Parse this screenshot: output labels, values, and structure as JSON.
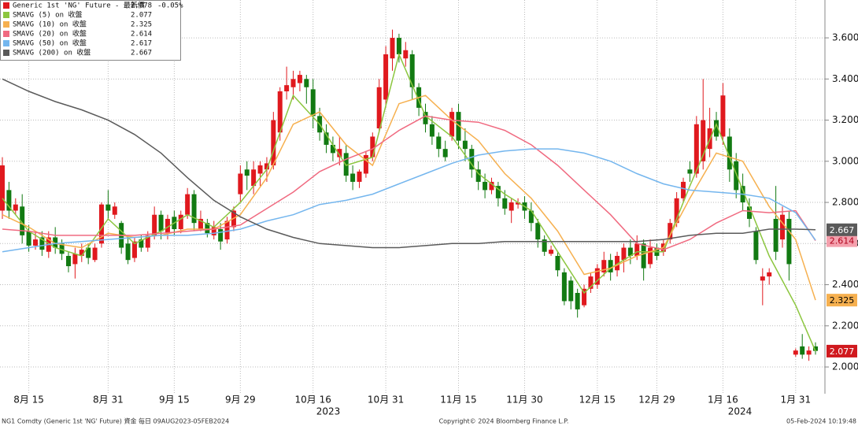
{
  "chart_data": {
    "type": "candlestick",
    "categories": [
      "2023-08-09",
      "2023-08-10",
      "2023-08-11",
      "2023-08-14",
      "2023-08-15",
      "2023-08-16",
      "2023-08-17",
      "2023-08-18",
      "2023-08-21",
      "2023-08-22",
      "2023-08-23",
      "2023-08-24",
      "2023-08-25",
      "2023-08-28",
      "2023-08-29",
      "2023-08-30",
      "2023-08-31",
      "2023-09-01",
      "2023-09-05",
      "2023-09-06",
      "2023-09-07",
      "2023-09-08",
      "2023-09-11",
      "2023-09-12",
      "2023-09-13",
      "2023-09-14",
      "2023-09-15",
      "2023-09-18",
      "2023-09-19",
      "2023-09-20",
      "2023-09-21",
      "2023-09-22",
      "2023-09-25",
      "2023-09-26",
      "2023-09-27",
      "2023-09-28",
      "2023-09-29",
      "2023-10-02",
      "2023-10-03",
      "2023-10-04",
      "2023-10-05",
      "2023-10-06",
      "2023-10-09",
      "2023-10-10",
      "2023-10-11",
      "2023-10-12",
      "2023-10-13",
      "2023-10-16",
      "2023-10-17",
      "2023-10-18",
      "2023-10-19",
      "2023-10-20",
      "2023-10-23",
      "2023-10-24",
      "2023-10-25",
      "2023-10-26",
      "2023-10-27",
      "2023-10-30",
      "2023-10-31",
      "2023-11-01",
      "2023-11-02",
      "2023-11-03",
      "2023-11-06",
      "2023-11-07",
      "2023-11-08",
      "2023-11-09",
      "2023-11-10",
      "2023-11-13",
      "2023-11-14",
      "2023-11-15",
      "2023-11-16",
      "2023-11-17",
      "2023-11-20",
      "2023-11-21",
      "2023-11-22",
      "2023-11-24",
      "2023-11-27",
      "2023-11-28",
      "2023-11-29",
      "2023-11-30",
      "2023-12-01",
      "2023-12-04",
      "2023-12-05",
      "2023-12-06",
      "2023-12-07",
      "2023-12-08",
      "2023-12-11",
      "2023-12-12",
      "2023-12-13",
      "2023-12-14",
      "2023-12-15",
      "2023-12-18",
      "2023-12-19",
      "2023-12-20",
      "2023-12-21",
      "2023-12-22",
      "2023-12-26",
      "2023-12-27",
      "2023-12-28",
      "2023-12-29",
      "2024-01-02",
      "2024-01-03",
      "2024-01-04",
      "2024-01-05",
      "2024-01-08",
      "2024-01-09",
      "2024-01-10",
      "2024-01-11",
      "2024-01-12",
      "2024-01-16",
      "2024-01-17",
      "2024-01-18",
      "2024-01-19",
      "2024-01-22",
      "2024-01-23",
      "2024-01-24",
      "2024-01-25",
      "2024-01-26",
      "2024-01-29",
      "2024-01-30",
      "2024-01-31",
      "2024-02-01",
      "2024-02-02",
      "2024-02-05"
    ],
    "candles": {
      "name": "Generic 1st 'NG' Future - 最新價",
      "color": "#e0191e",
      "up_color": "#e0191e",
      "down_color": "#127a12",
      "last": 2.078,
      "change": "-0.05%",
      "open": [
        2.76,
        2.86,
        2.76,
        2.78,
        2.66,
        2.59,
        2.63,
        2.56,
        2.63,
        2.6,
        2.54,
        2.5,
        2.54,
        2.58,
        2.52,
        2.6,
        2.79,
        2.74,
        2.7,
        2.6,
        2.53,
        2.62,
        2.58,
        2.64,
        2.74,
        2.65,
        2.73,
        2.67,
        2.74,
        2.84,
        2.67,
        2.7,
        2.64,
        2.67,
        2.62,
        2.68,
        2.84,
        2.96,
        2.88,
        2.94,
        2.96,
        2.98,
        3.14,
        3.34,
        3.36,
        3.38,
        3.4,
        3.35,
        3.22,
        3.14,
        3.08,
        3.02,
        3.04,
        2.94,
        2.9,
        2.94,
        3.02,
        3.16,
        3.3,
        3.5,
        3.6,
        3.5,
        3.52,
        3.36,
        3.24,
        3.18,
        3.12,
        3.06,
        3.12,
        3.24,
        3.1,
        3.06,
        2.96,
        2.9,
        2.86,
        2.88,
        2.82,
        2.76,
        2.79,
        2.8,
        2.76,
        2.7,
        2.62,
        2.55,
        2.54,
        2.46,
        2.42,
        2.36,
        2.3,
        2.38,
        2.4,
        2.46,
        2.52,
        2.47,
        2.52,
        2.58,
        2.54,
        2.6,
        2.5,
        2.58,
        2.56,
        2.62,
        2.7,
        2.82,
        2.96,
        2.94,
        3.0,
        3.06,
        3.2,
        3.12,
        3.12,
        3.0,
        2.88,
        2.78,
        2.66,
        2.42,
        2.44,
        2.72,
        2.62,
        2.72,
        2.06,
        2.1,
        2.06,
        2.1
      ],
      "high": [
        3.02,
        2.9,
        2.82,
        2.84,
        2.69,
        2.66,
        2.66,
        2.66,
        2.68,
        2.62,
        2.56,
        2.58,
        2.6,
        2.6,
        2.6,
        2.8,
        2.86,
        2.8,
        2.71,
        2.63,
        2.63,
        2.64,
        2.66,
        2.78,
        2.76,
        2.74,
        2.76,
        2.76,
        2.87,
        2.86,
        2.76,
        2.72,
        2.71,
        2.7,
        2.73,
        2.78,
        2.98,
        3.0,
        3.0,
        3.0,
        3.02,
        3.24,
        3.36,
        3.46,
        3.44,
        3.44,
        3.42,
        3.4,
        3.26,
        3.18,
        3.12,
        3.12,
        3.08,
        2.98,
        2.96,
        3.05,
        3.14,
        3.4,
        3.56,
        3.64,
        3.62,
        3.58,
        3.54,
        3.38,
        3.28,
        3.22,
        3.14,
        3.1,
        3.26,
        3.28,
        3.16,
        3.08,
        3.0,
        2.94,
        2.92,
        2.9,
        2.86,
        2.82,
        2.82,
        2.83,
        2.8,
        2.72,
        2.64,
        2.59,
        2.56,
        2.48,
        2.44,
        2.38,
        2.4,
        2.46,
        2.5,
        2.56,
        2.55,
        2.56,
        2.6,
        2.62,
        2.64,
        2.62,
        2.62,
        2.6,
        2.62,
        2.72,
        2.85,
        2.92,
        3.0,
        3.22,
        3.4,
        3.26,
        3.24,
        3.38,
        3.16,
        3.04,
        2.94,
        2.82,
        2.68,
        2.48,
        2.48,
        2.88,
        2.78,
        2.76,
        2.09,
        2.16,
        2.1,
        2.12
      ],
      "low": [
        2.72,
        2.72,
        2.74,
        2.6,
        2.56,
        2.57,
        2.54,
        2.53,
        2.55,
        2.52,
        2.46,
        2.43,
        2.51,
        2.5,
        2.51,
        2.58,
        2.72,
        2.72,
        2.55,
        2.5,
        2.51,
        2.56,
        2.56,
        2.62,
        2.62,
        2.62,
        2.64,
        2.65,
        2.72,
        2.66,
        2.66,
        2.63,
        2.62,
        2.57,
        2.6,
        2.66,
        2.8,
        2.86,
        2.84,
        2.88,
        2.9,
        2.96,
        3.1,
        3.3,
        3.3,
        3.34,
        3.28,
        3.16,
        3.1,
        3.04,
        3.0,
        2.98,
        2.9,
        2.86,
        2.87,
        2.92,
        3.0,
        3.14,
        3.26,
        3.44,
        3.48,
        3.46,
        3.3,
        3.22,
        3.14,
        3.08,
        3.02,
        3.0,
        3.1,
        3.06,
        3.0,
        2.92,
        2.86,
        2.82,
        2.84,
        2.78,
        2.74,
        2.7,
        2.77,
        2.72,
        2.66,
        2.58,
        2.54,
        2.54,
        2.44,
        2.3,
        2.28,
        2.24,
        2.29,
        2.36,
        2.38,
        2.44,
        2.42,
        2.44,
        2.46,
        2.5,
        2.52,
        2.42,
        2.48,
        2.52,
        2.54,
        2.6,
        2.68,
        2.8,
        2.9,
        2.92,
        2.96,
        3.02,
        3.1,
        3.08,
        2.9,
        2.82,
        2.76,
        2.68,
        2.5,
        2.3,
        2.4,
        2.52,
        2.58,
        2.42,
        2.05,
        2.04,
        2.03,
        2.06
      ],
      "close": [
        2.98,
        2.76,
        2.79,
        2.64,
        2.59,
        2.62,
        2.57,
        2.63,
        2.58,
        2.55,
        2.49,
        2.55,
        2.57,
        2.53,
        2.58,
        2.79,
        2.76,
        2.78,
        2.58,
        2.52,
        2.61,
        2.58,
        2.64,
        2.74,
        2.66,
        2.72,
        2.67,
        2.74,
        2.84,
        2.7,
        2.72,
        2.65,
        2.68,
        2.61,
        2.71,
        2.76,
        2.94,
        2.93,
        2.96,
        2.98,
        2.99,
        3.2,
        3.34,
        3.37,
        3.4,
        3.42,
        3.36,
        3.22,
        3.14,
        3.08,
        3.04,
        3.06,
        2.93,
        2.9,
        2.95,
        3.03,
        3.12,
        3.36,
        3.52,
        3.6,
        3.52,
        3.54,
        3.36,
        3.26,
        3.18,
        3.12,
        3.06,
        3.02,
        3.24,
        3.1,
        3.06,
        2.96,
        2.9,
        2.86,
        2.9,
        2.82,
        2.77,
        2.8,
        2.8,
        2.76,
        2.7,
        2.62,
        2.56,
        2.57,
        2.47,
        2.32,
        2.32,
        2.28,
        2.38,
        2.44,
        2.48,
        2.52,
        2.46,
        2.54,
        2.58,
        2.54,
        2.6,
        2.48,
        2.58,
        2.54,
        2.6,
        2.7,
        2.82,
        2.9,
        2.94,
        3.18,
        3.2,
        3.16,
        3.12,
        3.32,
        2.96,
        2.86,
        2.8,
        2.72,
        2.52,
        2.44,
        2.46,
        2.56,
        2.74,
        2.5,
        2.08,
        2.06,
        2.08,
        2.078
      ]
    },
    "series": [
      {
        "name": "SMAVG (5) on 收盤",
        "color": "#8cc63f",
        "last": 2.077,
        "price_tag": true,
        "tag_color": "#d0191e",
        "tag_text_color": "#ffffff",
        "x": [
          "2023-08-09",
          "2023-08-15",
          "2023-08-21",
          "2023-08-25",
          "2023-08-31",
          "2023-09-07",
          "2023-09-13",
          "2023-09-19",
          "2023-09-25",
          "2023-09-29",
          "2023-10-05",
          "2023-10-11",
          "2023-10-17",
          "2023-10-23",
          "2023-10-27",
          "2023-11-02",
          "2023-11-08",
          "2023-11-14",
          "2023-11-20",
          "2023-11-27",
          "2023-12-01",
          "2023-12-07",
          "2023-12-13",
          "2023-12-19",
          "2023-12-26",
          "2024-01-02",
          "2024-01-08",
          "2024-01-12",
          "2024-01-19",
          "2024-01-25",
          "2024-01-31",
          "2024-02-05"
        ],
        "values": [
          2.82,
          2.66,
          2.58,
          2.54,
          2.72,
          2.6,
          2.66,
          2.74,
          2.68,
          2.8,
          2.96,
          3.32,
          3.18,
          2.98,
          3.02,
          3.52,
          3.22,
          3.12,
          2.94,
          2.84,
          2.76,
          2.56,
          2.36,
          2.48,
          2.56,
          2.56,
          2.88,
          3.18,
          2.86,
          2.54,
          2.3,
          2.077
        ]
      },
      {
        "name": "SMAVG (10) on 收盤",
        "color": "#f6b04f",
        "last": 2.325,
        "price_tag": true,
        "tag_color": "#f6b04f",
        "tag_text_color": "#000000",
        "x": [
          "2023-08-09",
          "2023-08-15",
          "2023-08-21",
          "2023-08-25",
          "2023-08-31",
          "2023-09-07",
          "2023-09-13",
          "2023-09-19",
          "2023-09-25",
          "2023-09-29",
          "2023-10-05",
          "2023-10-11",
          "2023-10-17",
          "2023-10-23",
          "2023-10-27",
          "2023-11-02",
          "2023-11-08",
          "2023-11-14",
          "2023-11-20",
          "2023-11-27",
          "2023-12-01",
          "2023-12-07",
          "2023-12-13",
          "2023-12-19",
          "2023-12-26",
          "2024-01-02",
          "2024-01-08",
          "2024-01-12",
          "2024-01-19",
          "2024-01-25",
          "2024-01-31",
          "2024-02-05"
        ],
        "values": [
          2.74,
          2.68,
          2.6,
          2.58,
          2.65,
          2.63,
          2.64,
          2.67,
          2.67,
          2.74,
          2.92,
          3.18,
          3.24,
          3.08,
          2.98,
          3.28,
          3.32,
          3.2,
          3.1,
          2.94,
          2.82,
          2.66,
          2.45,
          2.48,
          2.54,
          2.58,
          2.82,
          3.04,
          3.0,
          2.78,
          2.62,
          2.325
        ]
      },
      {
        "name": "SMAVG (20) on 收盤",
        "color": "#f06a80",
        "last": 2.614,
        "price_tag": true,
        "tag_color": "#f4a0ad",
        "tag_text_color": "#b0001a",
        "x": [
          "2023-08-09",
          "2023-08-15",
          "2023-08-21",
          "2023-08-25",
          "2023-08-31",
          "2023-09-07",
          "2023-09-13",
          "2023-09-19",
          "2023-09-25",
          "2023-09-29",
          "2023-10-05",
          "2023-10-11",
          "2023-10-17",
          "2023-10-23",
          "2023-10-27",
          "2023-11-02",
          "2023-11-08",
          "2023-11-14",
          "2023-11-20",
          "2023-11-27",
          "2023-12-01",
          "2023-12-07",
          "2023-12-13",
          "2023-12-19",
          "2023-12-26",
          "2024-01-02",
          "2024-01-08",
          "2024-01-12",
          "2024-01-19",
          "2024-01-25",
          "2024-01-31",
          "2024-02-05"
        ],
        "values": [
          2.67,
          2.66,
          2.64,
          2.64,
          2.64,
          2.64,
          2.65,
          2.66,
          2.67,
          2.69,
          2.77,
          2.85,
          2.95,
          3.01,
          3.06,
          3.15,
          3.22,
          3.2,
          3.19,
          3.15,
          3.08,
          2.98,
          2.86,
          2.74,
          2.6,
          2.57,
          2.62,
          2.7,
          2.76,
          2.75,
          2.76,
          2.614
        ]
      },
      {
        "name": "SMAVG (50) on 收盤",
        "color": "#74b6ee",
        "last": 2.617,
        "price_tag": false,
        "x": [
          "2023-08-09",
          "2023-08-15",
          "2023-08-21",
          "2023-08-25",
          "2023-08-31",
          "2023-09-07",
          "2023-09-13",
          "2023-09-19",
          "2023-09-25",
          "2023-09-29",
          "2023-10-05",
          "2023-10-11",
          "2023-10-17",
          "2023-10-23",
          "2023-10-27",
          "2023-11-02",
          "2023-11-08",
          "2023-11-14",
          "2023-11-20",
          "2023-11-27",
          "2023-12-01",
          "2023-12-07",
          "2023-12-13",
          "2023-12-19",
          "2023-12-26",
          "2024-01-02",
          "2024-01-08",
          "2024-01-12",
          "2024-01-19",
          "2024-01-25",
          "2024-01-31",
          "2024-02-05"
        ],
        "values": [
          2.56,
          2.58,
          2.6,
          2.61,
          2.62,
          2.63,
          2.64,
          2.64,
          2.65,
          2.67,
          2.71,
          2.74,
          2.79,
          2.81,
          2.84,
          2.89,
          2.94,
          2.99,
          3.03,
          3.05,
          3.06,
          3.06,
          3.04,
          3.0,
          2.94,
          2.89,
          2.86,
          2.85,
          2.84,
          2.82,
          2.75,
          2.617
        ]
      },
      {
        "name": "SMAVG (200) on 收盤",
        "color": "#5a5a5a",
        "last": 2.667,
        "price_tag": true,
        "tag_color": "#5a5a5a",
        "tag_text_color": "#ffffff",
        "x": [
          "2023-08-09",
          "2023-08-15",
          "2023-08-21",
          "2023-08-25",
          "2023-08-31",
          "2023-09-07",
          "2023-09-13",
          "2023-09-19",
          "2023-09-25",
          "2023-09-29",
          "2023-10-05",
          "2023-10-11",
          "2023-10-17",
          "2023-10-23",
          "2023-10-27",
          "2023-11-02",
          "2023-11-08",
          "2023-11-14",
          "2023-11-20",
          "2023-11-27",
          "2023-12-01",
          "2023-12-07",
          "2023-12-13",
          "2023-12-19",
          "2023-12-26",
          "2024-01-02",
          "2024-01-08",
          "2024-01-12",
          "2024-01-19",
          "2024-01-25",
          "2024-01-31",
          "2024-02-05"
        ],
        "values": [
          3.4,
          3.34,
          3.29,
          3.25,
          3.2,
          3.13,
          3.04,
          2.92,
          2.81,
          2.73,
          2.67,
          2.63,
          2.6,
          2.59,
          2.58,
          2.58,
          2.59,
          2.6,
          2.6,
          2.61,
          2.61,
          2.61,
          2.61,
          2.61,
          2.61,
          2.62,
          2.64,
          2.65,
          2.65,
          2.67,
          2.67,
          2.667
        ]
      }
    ],
    "ylim": [
      1.87,
      3.784
    ],
    "yticks": [
      {
        "value": 2.0,
        "label": "2.000"
      },
      {
        "value": 2.2,
        "label": "2.200"
      },
      {
        "value": 2.4,
        "label": "2.400"
      },
      {
        "value": 2.6,
        "label": "2.600"
      },
      {
        "value": 2.8,
        "label": "2.800"
      },
      {
        "value": 3.0,
        "label": "3.000"
      },
      {
        "value": 3.2,
        "label": "3.200"
      },
      {
        "value": 3.4,
        "label": "3.400"
      },
      {
        "value": 3.6,
        "label": "3.600"
      }
    ],
    "xticks": [
      {
        "value": "2023-08-15",
        "label": "8月 15"
      },
      {
        "value": "2023-08-31",
        "label": "8月 31"
      },
      {
        "value": "2023-09-15",
        "label": "9月 15"
      },
      {
        "value": "2023-09-29",
        "label": "9月 29"
      },
      {
        "value": "2023-10-16",
        "label": "10月 16"
      },
      {
        "value": "2023-10-31",
        "label": "10月 31"
      },
      {
        "value": "2023-11-15",
        "label": "11月 15"
      },
      {
        "value": "2023-11-30",
        "label": "11月 30"
      },
      {
        "value": "2023-12-15",
        "label": "12月 15"
      },
      {
        "value": "2023-12-29",
        "label": "12月 29"
      },
      {
        "value": "2024-01-16",
        "label": "1月 16"
      },
      {
        "value": "2024-01-31",
        "label": "1月 31"
      }
    ],
    "years": [
      "2023",
      "2024"
    ],
    "grid": true,
    "footer": {
      "left": "NG1 Comdty (Generic 1st 'NG' Future) 資金  每日 09AUG2023-05FEB2024",
      "center": "Copyright© 2024 Bloomberg Finance L.P.",
      "right": "05-Feb-2024 10:19:48"
    }
  }
}
